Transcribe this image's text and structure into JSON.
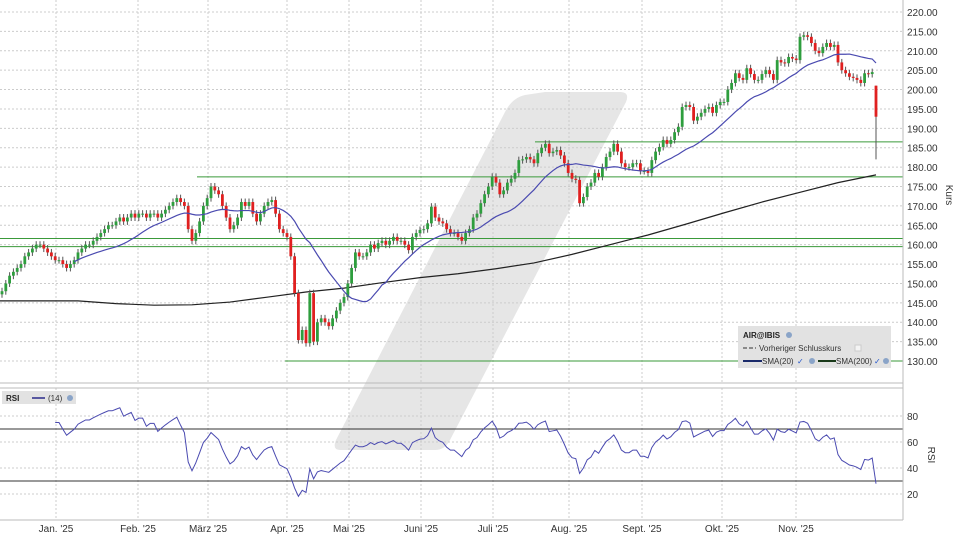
{
  "chart_data": [
    {
      "type": "candlestick",
      "title": "AIR@IBIS",
      "ylabel": "Kurs",
      "ylim": [
        128,
        222
      ],
      "yticks": [
        "130.00",
        "135.00",
        "140.00",
        "145.00",
        "150.00",
        "155.00",
        "160.00",
        "165.00",
        "170.00",
        "175.00",
        "180.00",
        "185.00",
        "190.00",
        "195.00",
        "200.00",
        "205.00",
        "210.00",
        "215.00",
        "220.00"
      ],
      "xticks": [
        "Jan. '25",
        "Feb. '25",
        "März '25",
        "Apr. '25",
        "Mai '25",
        "Juni '25",
        "Juli '25",
        "Aug. '25",
        "Sept. '25",
        "Okt. '25",
        "Nov. '25"
      ],
      "grid": true,
      "colors": {
        "up": "#2e9e3e",
        "down": "#e02020",
        "sma20": "#4a4ab0",
        "sma200": "#222222",
        "levels": "#3a9a3a"
      },
      "closes": [
        148,
        150,
        152,
        153,
        154,
        155,
        157,
        158,
        159,
        160,
        160,
        159,
        158,
        157,
        156,
        156,
        155,
        154,
        155,
        156,
        158,
        159,
        160,
        160,
        161,
        162,
        163,
        164,
        165,
        165,
        166,
        167,
        166,
        167,
        168,
        167,
        168,
        168,
        167,
        168,
        168,
        167,
        168,
        169,
        170,
        171,
        172,
        171,
        170,
        164,
        161,
        163,
        166,
        170,
        172,
        175,
        174,
        173,
        170,
        167,
        164,
        165,
        167,
        171,
        170,
        171,
        168,
        166,
        168,
        170,
        171,
        171.5,
        168,
        164,
        163,
        162,
        157,
        147.5,
        135.4,
        138,
        134.6,
        147.5,
        135,
        140,
        141,
        140,
        139,
        141,
        143,
        145,
        146.5,
        150,
        154,
        158,
        157,
        157,
        158,
        160,
        159,
        160.4,
        161,
        160,
        161,
        162,
        161,
        161,
        160,
        158.6,
        162,
        163,
        163.8,
        164,
        165.5,
        169.8,
        167,
        166,
        165.5,
        164,
        163,
        163,
        162,
        161,
        163,
        164,
        167,
        168,
        170.7,
        173,
        175,
        177.5,
        176,
        173,
        174,
        176,
        177,
        178.5,
        181.8,
        182,
        182.6,
        182,
        181,
        183.6,
        185,
        186,
        183.6,
        184,
        184.4,
        183,
        181,
        178.5,
        177,
        176.7,
        170.7,
        172.3,
        175,
        176,
        178.5,
        177.5,
        180,
        182.6,
        184,
        186,
        184,
        181,
        180,
        180,
        181,
        181,
        179,
        179,
        178.5,
        181.8,
        184,
        185.2,
        187,
        186,
        187,
        189,
        190.4,
        195.5,
        196,
        195.5,
        192,
        193,
        194,
        195,
        195.5,
        194,
        196,
        196.8,
        196.8,
        200,
        201.7,
        204.2,
        203,
        202.5,
        205.5,
        204,
        202.5,
        202.5,
        204,
        205,
        204,
        202.5,
        207.6,
        207,
        206.8,
        208.4,
        208,
        207.6,
        213.6,
        214,
        213.6,
        212,
        210,
        209.4,
        211,
        212,
        211,
        211.5,
        207,
        205,
        204.2,
        203.3,
        203,
        202.5,
        201.7,
        204.2,
        204,
        204.5,
        193
      ],
      "last_candle": {
        "open": 201,
        "high": 201,
        "low": 182,
        "close": 193
      },
      "sma200_every_10": [
        145.5,
        145.5,
        145.5,
        144.8,
        144.4,
        144.5,
        145.2,
        146.5,
        147.8,
        148.8,
        150.2,
        151.5,
        152.5,
        153.8,
        155.3,
        157.5,
        160,
        162.5,
        165.3,
        168.2,
        171,
        173.5,
        176,
        178
      ],
      "horizontal_levels": [
        186.5,
        177.5,
        161.6,
        159.5,
        130
      ],
      "legend": {
        "title": "AIR@IBIS",
        "prev_close": "Vorheriger Schlusskurs",
        "sma20": "SMA(20)",
        "sma200": "SMA(200)"
      }
    },
    {
      "type": "line",
      "title": "RSI",
      "period_label": "(14)",
      "ylabel": "RSI",
      "ylim": [
        15,
        88
      ],
      "yticks": [
        "20",
        "40",
        "60",
        "80"
      ],
      "reference_lines": [
        30,
        70
      ],
      "color": "#4a4ab0"
    }
  ]
}
